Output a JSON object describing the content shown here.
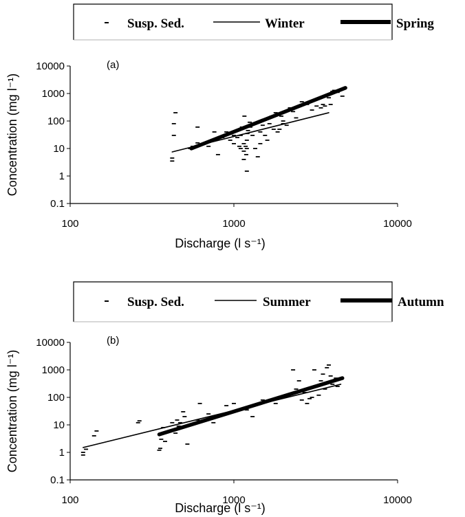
{
  "chart_data": [
    {
      "type": "scatter",
      "panel_label": "(a)",
      "xlabel": "Discharge (l s⁻¹)",
      "ylabel": "Concentration (mg l⁻¹)",
      "x_scale": "log",
      "y_scale": "log",
      "xlim": [
        100,
        10000
      ],
      "ylim": [
        0.1,
        10000
      ],
      "x_ticks": [
        "100",
        "1000",
        "10000"
      ],
      "y_ticks": [
        "0.1",
        "1",
        "10",
        "100",
        "1000",
        "10000"
      ],
      "grid": false,
      "legend_position": "top",
      "legend": [
        {
          "label": "Susp. Sed.",
          "style": "dash-marker"
        },
        {
          "label": "Winter",
          "style": "thin-line"
        },
        {
          "label": "Spring",
          "style": "thick-line"
        }
      ],
      "series": [
        {
          "name": "Susp. Sed.",
          "kind": "scatter",
          "x": [
            420,
            420,
            430,
            430,
            440,
            540,
            560,
            600,
            600,
            650,
            700,
            760,
            800,
            850,
            900,
            950,
            1000,
            1000,
            1030,
            1050,
            1080,
            1100,
            1100,
            1120,
            1150,
            1150,
            1150,
            1160,
            1180,
            1190,
            1200,
            1200,
            1200,
            1210,
            1220,
            1250,
            1260,
            1300,
            1350,
            1400,
            1450,
            1450,
            1500,
            1500,
            1550,
            1600,
            1650,
            1700,
            1750,
            1800,
            1850,
            1900,
            1950,
            2000,
            2000,
            2100,
            2200,
            2300,
            2400,
            2600,
            2800,
            3000,
            3200,
            3400,
            3500,
            3600,
            3700,
            3800,
            3900,
            4000,
            4000,
            4100,
            4300,
            4600
          ],
          "y": [
            3.5,
            4.5,
            30,
            80,
            200,
            10,
            12,
            60,
            16,
            15,
            12,
            40,
            6,
            25,
            40,
            20,
            30,
            15,
            45,
            25,
            12,
            10,
            30,
            60,
            8,
            15,
            4,
            150,
            12,
            6,
            10,
            20,
            1.5,
            35,
            45,
            90,
            60,
            30,
            10,
            5,
            40,
            15,
            100,
            70,
            30,
            20,
            80,
            150,
            50,
            200,
            40,
            50,
            150,
            80,
            100,
            70,
            300,
            220,
            130,
            500,
            400,
            250,
            350,
            300,
            400,
            350,
            900,
            700,
            400,
            1100,
            1200,
            1300,
            1100,
            800
          ]
        },
        {
          "name": "Winter",
          "kind": "line",
          "x": [
            420,
            3800
          ],
          "y": [
            7.5,
            200
          ]
        },
        {
          "name": "Spring",
          "kind": "line",
          "x": [
            550,
            4800
          ],
          "y": [
            10,
            1600
          ]
        }
      ]
    },
    {
      "type": "scatter",
      "panel_label": "(b)",
      "xlabel": "Discharge (l s⁻¹)",
      "ylabel": "Concentration (mg l⁻¹)",
      "x_scale": "log",
      "y_scale": "log",
      "xlim": [
        100,
        10000
      ],
      "ylim": [
        0.1,
        10000
      ],
      "x_ticks": [
        "100",
        "1000",
        "10000"
      ],
      "y_ticks": [
        "0.1",
        "1",
        "10",
        "100",
        "1000",
        "10000"
      ],
      "grid": false,
      "legend_position": "top",
      "legend": [
        {
          "label": "Susp. Sed.",
          "style": "dash-marker"
        },
        {
          "label": "Summer",
          "style": "thin-line"
        },
        {
          "label": "Autumn",
          "style": "thick-line"
        }
      ],
      "series": [
        {
          "name": "Susp. Sed.",
          "kind": "scatter",
          "x": [
            120,
            120,
            125,
            140,
            145,
            260,
            265,
            350,
            355,
            360,
            360,
            370,
            380,
            400,
            420,
            440,
            450,
            460,
            470,
            480,
            490,
            500,
            520,
            560,
            600,
            620,
            700,
            750,
            800,
            900,
            1000,
            1200,
            1300,
            1500,
            1800,
            2000,
            2300,
            2400,
            2500,
            2600,
            2700,
            2800,
            2900,
            3000,
            3100,
            3200,
            3300,
            3400,
            3500,
            3600,
            3700,
            3800,
            3900,
            4000,
            4200,
            4300
          ],
          "y": [
            0.8,
            1.0,
            1.3,
            4,
            6,
            12,
            14,
            1.2,
            1.4,
            3,
            5,
            8,
            2.5,
            6,
            12,
            5,
            15,
            9,
            12,
            8,
            30,
            20,
            2,
            10,
            15,
            60,
            25,
            12,
            20,
            50,
            60,
            35,
            20,
            80,
            60,
            100,
            1000,
            200,
            400,
            80,
            150,
            60,
            90,
            100,
            1000,
            250,
            120,
            400,
            700,
            200,
            1200,
            1500,
            600,
            300,
            500,
            250
          ]
        },
        {
          "name": "Summer",
          "kind": "line",
          "x": [
            120,
            4500
          ],
          "y": [
            1.5,
            300
          ]
        },
        {
          "name": "Autumn",
          "kind": "line",
          "x": [
            350,
            4600
          ],
          "y": [
            4.5,
            500
          ]
        }
      ]
    }
  ]
}
